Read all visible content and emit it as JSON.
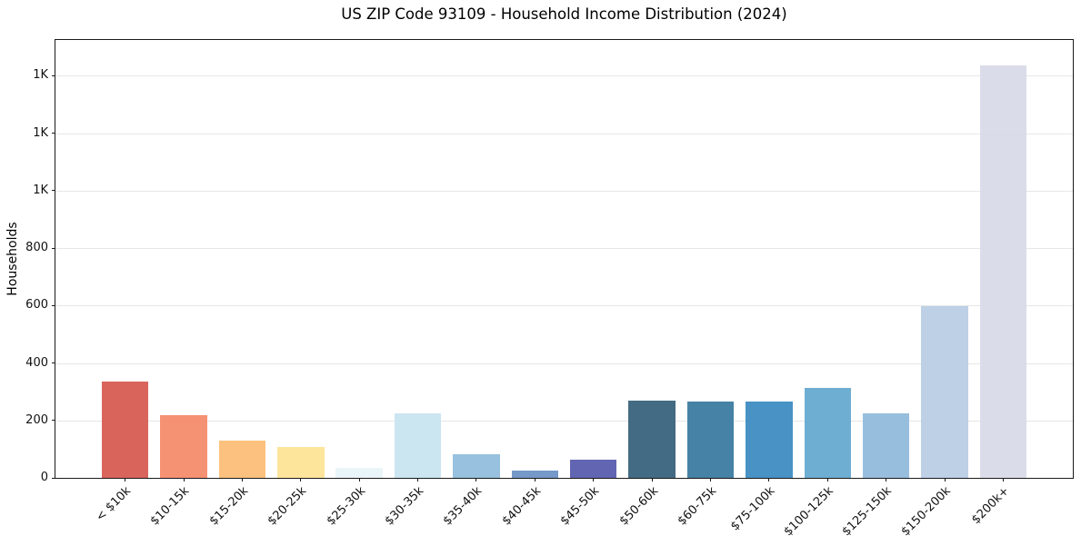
{
  "figure": {
    "background": "#ffffff"
  },
  "chart_data": {
    "type": "bar",
    "title": "US ZIP Code 93109 - Household Income Distribution (2024)",
    "xlabel": "",
    "ylabel": "Households",
    "categories": [
      "< $10k",
      "$10-15k",
      "$15-20k",
      "$20-25k",
      "$25-30k",
      "$30-35k",
      "$35-40k",
      "$40-45k",
      "$45-50k",
      "$50-60k",
      "$60-75k",
      "$75-100k",
      "$100-125k",
      "$125-150k",
      "$150-200k",
      "$200k+"
    ],
    "values": [
      335,
      217,
      130,
      107,
      35,
      226,
      83,
      26,
      64,
      268,
      265,
      267,
      313,
      224,
      597,
      1437
    ],
    "bar_colors": [
      "#d65850",
      "#f48a68",
      "#fcbc74",
      "#fde395",
      "#e8f4f9",
      "#c7e3f0",
      "#8fbcdc",
      "#6b91c5",
      "#5659ac",
      "#35607a",
      "#38799e",
      "#3a8ac1",
      "#63a8cf",
      "#90b9da",
      "#b8cce4",
      "#d7d9e7"
    ],
    "ylim": [
      0,
      1524
    ],
    "yticks": [
      0,
      200,
      400,
      600,
      800,
      1000,
      1200,
      1400
    ],
    "ytick_labels": [
      "0",
      "200",
      "400",
      "600",
      "800",
      "1K",
      "1K",
      "1K"
    ],
    "grid": "horizontal",
    "gridline_color": "#e7e7e7",
    "legend": "none"
  }
}
